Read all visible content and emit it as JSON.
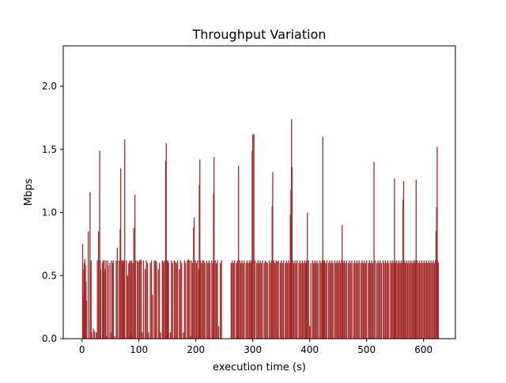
{
  "chart_data": {
    "type": "bar",
    "title": "Throughput Variation",
    "xlabel": "execution time (s)",
    "ylabel": "Mbps",
    "xlim": [
      -33,
      656
    ],
    "ylim": [
      0,
      2.32
    ],
    "x_ticks": [
      0,
      100,
      200,
      300,
      400,
      500,
      600
    ],
    "y_ticks": [
      0.0,
      0.5,
      1.0,
      1.5,
      2.0
    ],
    "x_tick_labels": [
      "0",
      "100",
      "200",
      "300",
      "400",
      "500",
      "600"
    ],
    "y_tick_labels": [
      "0.0",
      "0.5",
      "1.0",
      "1.5",
      "2.0"
    ],
    "bar_color": "#a52a2a",
    "grid": false,
    "legend": "none",
    "x": [
      1,
      2,
      3,
      4,
      5,
      6,
      7,
      8,
      11,
      14,
      16,
      17,
      20,
      22,
      25,
      27,
      29,
      31,
      32,
      33,
      36,
      37,
      38,
      39,
      41,
      42,
      43,
      45,
      46,
      49,
      51,
      52,
      54,
      55,
      57,
      60,
      62,
      65,
      67,
      68,
      70,
      71,
      72,
      73,
      74,
      75,
      78,
      80,
      82,
      84,
      85,
      86,
      87,
      89,
      91,
      93,
      94,
      97,
      99,
      101,
      103,
      104,
      106,
      108,
      111,
      113,
      115,
      117,
      120,
      122,
      124,
      127,
      129,
      131,
      134,
      136,
      138,
      141,
      143,
      145,
      147,
      148,
      149,
      150,
      151,
      152,
      155,
      157,
      159,
      162,
      164,
      166,
      168,
      171,
      173,
      175,
      178,
      180,
      182,
      185,
      187,
      189,
      191,
      192,
      194,
      196,
      197,
      199,
      201,
      203,
      205,
      206,
      207,
      208,
      210,
      212,
      214,
      216,
      219,
      221,
      223,
      225,
      228,
      230,
      231,
      232,
      234,
      236,
      238,
      240,
      243,
      245,
      262,
      264,
      266,
      268,
      271,
      273,
      274,
      275,
      277,
      279,
      281,
      283,
      285,
      288,
      290,
      292,
      294,
      296,
      297,
      298,
      299,
      300,
      302,
      304,
      307,
      309,
      311,
      313,
      315,
      317,
      320,
      322,
      324,
      326,
      329,
      331,
      333,
      334,
      335,
      337,
      339,
      341,
      343,
      345,
      348,
      350,
      352,
      354,
      357,
      359,
      361,
      363,
      365,
      366,
      367,
      368,
      369,
      370,
      372,
      374,
      376,
      378,
      381,
      383,
      385,
      387,
      389,
      391,
      393,
      394,
      395,
      396,
      398,
      400,
      402,
      405,
      407,
      409,
      411,
      413,
      415,
      418,
      420,
      422,
      423,
      424,
      425,
      426,
      428,
      430,
      433,
      435,
      437,
      439,
      441,
      444,
      446,
      448,
      450,
      452,
      454,
      456,
      457,
      458,
      459,
      461,
      463,
      465,
      468,
      470,
      472,
      474,
      477,
      479,
      481,
      483,
      485,
      487,
      490,
      492,
      494,
      496,
      498,
      500,
      503,
      505,
      507,
      509,
      511,
      513,
      515,
      518,
      520,
      522,
      524,
      526,
      529,
      531,
      533,
      535,
      537,
      539,
      542,
      544,
      546,
      548,
      549,
      550,
      551,
      553,
      555,
      557,
      559,
      561,
      563,
      564,
      565,
      566,
      568,
      570,
      572,
      574,
      576,
      578,
      580,
      582,
      584,
      585,
      586,
      587,
      589,
      591,
      593,
      595,
      597,
      599,
      601,
      603,
      605,
      607,
      609,
      611,
      613,
      615,
      617,
      619,
      621,
      622,
      623,
      624,
      625,
      626
    ],
    "values": [
      0.75,
      0.35,
      0.55,
      0.6,
      0.63,
      0.58,
      0.45,
      0.3,
      0.85,
      1.16,
      0.62,
      0.05,
      0.08,
      0.06,
      0.05,
      0.62,
      0.85,
      1.49,
      0.62,
      0.55,
      0.6,
      0.62,
      0.52,
      0.62,
      0.55,
      0.62,
      0.02,
      0.62,
      0.58,
      0.6,
      0.05,
      0.62,
      0.6,
      0.62,
      0.02,
      0.62,
      0.72,
      0.62,
      0.87,
      1.35,
      0.62,
      0.6,
      0.62,
      0.61,
      0.62,
      1.58,
      0.62,
      0.5,
      0.6,
      0.62,
      0.61,
      0.05,
      0.62,
      0.6,
      0.88,
      1.14,
      0.62,
      0.62,
      0.61,
      0.62,
      0.63,
      0.62,
      0.05,
      0.62,
      0.55,
      0.62,
      0.6,
      0.05,
      0.6,
      0.62,
      0.35,
      0.62,
      0.62,
      0.61,
      0.55,
      0.6,
      0.05,
      0.62,
      0.61,
      0.62,
      1.41,
      1.55,
      0.62,
      0.6,
      0.62,
      0.6,
      0.05,
      0.62,
      0.6,
      0.62,
      0.61,
      0.6,
      0.62,
      0.55,
      0.62,
      0.6,
      0.05,
      0.62,
      0.6,
      0.62,
      0.63,
      0.62,
      0.02,
      0.62,
      0.6,
      0.88,
      0.96,
      0.62,
      0.6,
      0.62,
      0.55,
      1.22,
      1.42,
      0.62,
      0.6,
      0.62,
      0.62,
      0.6,
      0.62,
      0.6,
      0.62,
      0.6,
      0.62,
      0.6,
      1.15,
      1.44,
      0.62,
      0.6,
      0.62,
      0.1,
      0.6,
      0.62,
      0.6,
      0.62,
      0.6,
      0.62,
      0.6,
      0.62,
      0.6,
      1.37,
      0.62,
      0.6,
      0.62,
      0.6,
      0.62,
      0.6,
      0.62,
      0.6,
      0.62,
      0.6,
      0.62,
      0.6,
      1.49,
      1.62,
      1.62,
      0.62,
      0.6,
      0.62,
      0.6,
      0.62,
      0.6,
      0.62,
      0.6,
      0.62,
      0.61,
      0.6,
      0.62,
      0.6,
      0.62,
      1.05,
      1.32,
      0.62,
      0.6,
      0.62,
      0.61,
      0.62,
      0.6,
      0.62,
      0.6,
      0.62,
      0.6,
      0.62,
      0.6,
      0.62,
      0.6,
      0.98,
      1.18,
      1.74,
      1.36,
      0.62,
      0.6,
      0.62,
      0.6,
      0.62,
      0.6,
      0.62,
      0.6,
      0.62,
      0.6,
      0.62,
      0.6,
      0.62,
      0.6,
      1.0,
      0.62,
      0.1,
      0.6,
      0.62,
      0.6,
      0.62,
      0.6,
      0.62,
      0.6,
      0.62,
      0.6,
      0.62,
      1.6,
      0.62,
      0.6,
      0.62,
      0.6,
      0.62,
      0.6,
      0.62,
      0.6,
      0.62,
      0.6,
      0.62,
      0.6,
      0.62,
      0.6,
      0.62,
      0.6,
      0.62,
      0.9,
      0.62,
      0.6,
      0.62,
      0.6,
      0.62,
      0.6,
      0.62,
      0.6,
      0.62,
      0.6,
      0.62,
      0.6,
      0.62,
      0.6,
      0.62,
      0.6,
      0.62,
      0.6,
      0.62,
      0.6,
      0.62,
      0.6,
      0.62,
      0.6,
      0.62,
      0.6,
      1.4,
      0.62,
      0.6,
      0.62,
      0.6,
      0.62,
      0.6,
      0.62,
      0.6,
      0.62,
      0.6,
      0.62,
      0.6,
      0.62,
      0.6,
      0.62,
      0.6,
      1.27,
      0.62,
      0.6,
      0.62,
      0.6,
      0.62,
      0.6,
      0.62,
      0.6,
      1.1,
      1.25,
      0.62,
      0.6,
      0.62,
      0.6,
      0.62,
      0.6,
      0.62,
      0.6,
      0.62,
      0.6,
      0.62,
      0.6,
      1.26,
      0.62,
      0.6,
      0.62,
      0.6,
      0.62,
      0.6,
      0.62,
      0.6,
      0.62,
      0.6,
      0.62,
      0.6,
      0.62,
      0.6,
      0.62,
      0.6,
      0.62,
      0.85,
      1.04,
      1.52,
      0.62,
      0.6
    ]
  }
}
